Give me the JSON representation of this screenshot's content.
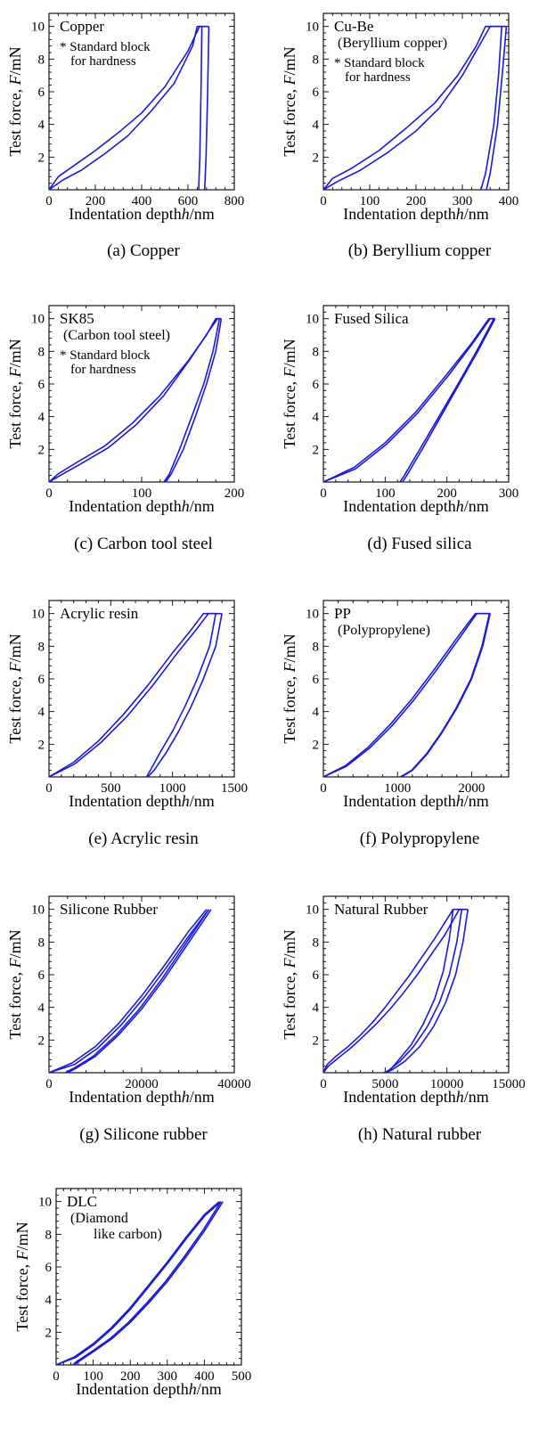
{
  "chart_data": [
    {
      "type": "line",
      "caption": "(a) Copper",
      "material_label": "Copper",
      "note": [
        "* Standard block",
        "for hardness"
      ],
      "xlabel": "Indentation depth h/nm",
      "ylabel": "Test force, F/mN",
      "xlim": [
        0,
        800
      ],
      "ylim": [
        0,
        10.8
      ],
      "xticks": [
        0,
        200,
        400,
        600,
        800
      ],
      "yticks": [
        2,
        4,
        6,
        8,
        10
      ],
      "series": [
        {
          "x": [
            0,
            40,
            100,
            200,
            300,
            400,
            500,
            600,
            650,
            690
          ],
          "y": [
            0,
            0.8,
            1.4,
            2.4,
            3.5,
            4.7,
            6.3,
            8.5,
            10,
            10
          ]
        },
        {
          "x": [
            0,
            60,
            140,
            240,
            340,
            440,
            540,
            620,
            640,
            660
          ],
          "y": [
            0,
            0.6,
            1.2,
            2.2,
            3.3,
            4.8,
            6.5,
            8.8,
            10,
            10
          ]
        },
        {
          "x": [
            690,
            685,
            678,
            672
          ],
          "y": [
            10,
            6,
            2,
            0
          ]
        },
        {
          "x": [
            660,
            656,
            651,
            646
          ],
          "y": [
            10,
            6,
            2,
            0
          ]
        }
      ]
    },
    {
      "type": "line",
      "caption": "(b) Beryllium copper",
      "material_label": "Cu-Be",
      "material_sub": "(Beryllium copper)",
      "note": [
        "* Standard block",
        "for hardness"
      ],
      "xlabel": "Indentation depth h/nm",
      "ylabel": "Test force, F/mN",
      "xlim": [
        0,
        400
      ],
      "ylim": [
        0,
        10.8
      ],
      "xticks": [
        0,
        100,
        200,
        300,
        400
      ],
      "yticks": [
        2,
        4,
        6,
        8,
        10
      ],
      "series": [
        {
          "x": [
            0,
            20,
            60,
            120,
            180,
            240,
            290,
            330,
            350,
            385
          ],
          "y": [
            0,
            0.7,
            1.3,
            2.4,
            3.8,
            5.3,
            7.0,
            8.8,
            10,
            10
          ]
        },
        {
          "x": [
            0,
            30,
            80,
            140,
            200,
            250,
            300,
            340,
            360,
            395
          ],
          "y": [
            0,
            0.5,
            1.2,
            2.3,
            3.6,
            5.0,
            7.0,
            9.0,
            10,
            10
          ]
        },
        {
          "x": [
            385,
            378,
            368,
            350,
            340
          ],
          "y": [
            10,
            7,
            4,
            1,
            0
          ]
        },
        {
          "x": [
            395,
            386,
            376,
            360,
            352
          ],
          "y": [
            10,
            7,
            4,
            1,
            0
          ]
        }
      ]
    },
    {
      "type": "line",
      "caption": "(c) Carbon tool steel",
      "material_label": "SK85",
      "material_sub": "(Carbon tool steel)",
      "note": [
        "* Standard block",
        "for hardness"
      ],
      "xlabel": "Indentation depth h/nm",
      "ylabel": "Test force, F/mN",
      "xlim": [
        0,
        200
      ],
      "ylim": [
        0,
        10.8
      ],
      "xticks": [
        0,
        100,
        200
      ],
      "yticks": [
        2,
        4,
        6,
        8,
        10
      ],
      "series": [
        {
          "x": [
            0,
            10,
            30,
            60,
            90,
            120,
            150,
            170,
            180,
            184
          ],
          "y": [
            0,
            0.5,
            1.2,
            2.2,
            3.6,
            5.3,
            7.4,
            9.0,
            10,
            10
          ]
        },
        {
          "x": [
            0,
            12,
            34,
            64,
            94,
            124,
            152,
            172,
            182,
            186
          ],
          "y": [
            0,
            0.4,
            1.1,
            2.1,
            3.5,
            5.3,
            7.5,
            9.2,
            10,
            10
          ]
        },
        {
          "x": [
            186,
            180,
            170,
            158,
            145,
            132,
            126
          ],
          "y": [
            10,
            8,
            6,
            4,
            2,
            0.5,
            0
          ]
        },
        {
          "x": [
            184,
            177,
            167,
            154,
            141,
            130,
            124
          ],
          "y": [
            10,
            8,
            6,
            4,
            2,
            0.5,
            0
          ]
        }
      ]
    },
    {
      "type": "line",
      "caption": "(d) Fused silica",
      "material_label": "Fused Silica",
      "xlabel": "Indentation depth h/nm",
      "ylabel": "Test force, F/mN",
      "xlim": [
        0,
        300
      ],
      "ylim": [
        0,
        10.8
      ],
      "xticks": [
        0,
        100,
        200,
        300
      ],
      "yticks": [
        2,
        4,
        6,
        8,
        10
      ],
      "series": [
        {
          "x": [
            0,
            50,
            100,
            150,
            200,
            240,
            268,
            276
          ],
          "y": [
            0,
            0.9,
            2.4,
            4.3,
            6.6,
            8.5,
            10,
            10
          ]
        },
        {
          "x": [
            0,
            52,
            102,
            152,
            202,
            242,
            270,
            278
          ],
          "y": [
            0,
            0.8,
            2.3,
            4.2,
            6.5,
            8.5,
            10,
            10
          ]
        },
        {
          "x": [
            278,
            250,
            220,
            190,
            160,
            135,
            128
          ],
          "y": [
            10,
            8,
            6,
            4,
            2,
            0.4,
            0
          ]
        },
        {
          "x": [
            276,
            248,
            218,
            187,
            156,
            131,
            124
          ],
          "y": [
            10,
            8,
            6,
            4,
            2,
            0.4,
            0
          ]
        }
      ]
    },
    {
      "type": "line",
      "caption": "(e) Acrylic resin",
      "material_label": "Acrylic resin",
      "xlabel": "Indentation depth h/nm",
      "ylabel": "Test force, F/mN",
      "xlim": [
        0,
        1500
      ],
      "ylim": [
        0,
        10.8
      ],
      "xticks": [
        0,
        500,
        1000,
        1500
      ],
      "yticks": [
        2,
        4,
        6,
        8,
        10
      ],
      "series": [
        {
          "x": [
            0,
            200,
            400,
            600,
            800,
            1000,
            1150,
            1250,
            1350
          ],
          "y": [
            0,
            0.9,
            2.2,
            3.8,
            5.6,
            7.6,
            9.0,
            10,
            10
          ]
        },
        {
          "x": [
            0,
            210,
            420,
            630,
            840,
            1040,
            1190,
            1290,
            1400
          ],
          "y": [
            0,
            0.8,
            2.1,
            3.7,
            5.6,
            7.6,
            9.0,
            10,
            10
          ]
        },
        {
          "x": [
            1400,
            1350,
            1250,
            1150,
            1050,
            950,
            850,
            800
          ],
          "y": [
            10,
            8,
            6,
            4.3,
            2.8,
            1.5,
            0.4,
            0
          ]
        },
        {
          "x": [
            1350,
            1300,
            1200,
            1100,
            1000,
            900,
            820,
            790
          ],
          "y": [
            10,
            8,
            6,
            4.3,
            2.8,
            1.5,
            0.4,
            0
          ]
        }
      ]
    },
    {
      "type": "line",
      "caption": "(f) Polypropylene",
      "material_label": "PP",
      "material_sub": "(Polypropylene)",
      "xlabel": "Indentation depth h/nm",
      "ylabel": "Test force, F/mN",
      "xlim": [
        0,
        2500
      ],
      "ylim": [
        0,
        10.8
      ],
      "xticks": [
        0,
        1000,
        2000
      ],
      "yticks": [
        2,
        4,
        6,
        8,
        10
      ],
      "series": [
        {
          "x": [
            0,
            300,
            600,
            900,
            1200,
            1500,
            1800,
            2050,
            2250
          ],
          "y": [
            0,
            0.7,
            1.8,
            3.2,
            4.8,
            6.6,
            8.5,
            10,
            10
          ]
        },
        {
          "x": [
            0,
            310,
            620,
            920,
            1220,
            1520,
            1820,
            2070,
            2250
          ],
          "y": [
            0,
            0.65,
            1.75,
            3.1,
            4.7,
            6.5,
            8.4,
            10,
            10
          ]
        },
        {
          "x": [
            2250,
            2150,
            2000,
            1800,
            1600,
            1400,
            1200,
            1050
          ],
          "y": [
            10,
            8,
            6,
            4.2,
            2.7,
            1.4,
            0.4,
            0
          ]
        },
        {
          "x": [
            2240,
            2140,
            1990,
            1790,
            1590,
            1390,
            1190,
            1040
          ],
          "y": [
            10,
            8,
            6,
            4.2,
            2.7,
            1.4,
            0.4,
            0
          ]
        }
      ]
    },
    {
      "type": "line",
      "caption": "(g) Silicone rubber",
      "material_label": "Silicone Rubber",
      "xlabel": "Indentation depth h/nm",
      "ylabel": "Test force, F/mN",
      "xlim": [
        0,
        40000
      ],
      "ylim": [
        0,
        10.8
      ],
      "xticks": [
        0,
        20000,
        40000
      ],
      "yticks": [
        2,
        4,
        6,
        8,
        10
      ],
      "series": [
        {
          "x": [
            0,
            5000,
            10000,
            15000,
            20000,
            25000,
            30000,
            34000
          ],
          "y": [
            0,
            0.6,
            1.6,
            3.0,
            4.7,
            6.6,
            8.6,
            10
          ]
        },
        {
          "x": [
            0,
            5500,
            10500,
            15500,
            20500,
            25500,
            30500,
            34500
          ],
          "y": [
            0,
            0.5,
            1.5,
            2.9,
            4.6,
            6.5,
            8.5,
            10
          ]
        },
        {
          "x": [
            35000,
            30000,
            25000,
            20000,
            15000,
            10000,
            6000,
            4000
          ],
          "y": [
            10,
            7.9,
            5.8,
            3.9,
            2.3,
            1.0,
            0.3,
            0
          ]
        },
        {
          "x": [
            34500,
            29500,
            24500,
            19500,
            14500,
            9500,
            5500,
            3500
          ],
          "y": [
            10,
            7.9,
            5.8,
            3.9,
            2.3,
            1.0,
            0.3,
            0
          ]
        }
      ]
    },
    {
      "type": "line",
      "caption": "(h) Natural rubber",
      "material_label": "Natural Rubber",
      "xlabel": "Indentation depth h/nm",
      "ylabel": "Test force, F/mN",
      "xlim": [
        0,
        15000
      ],
      "ylim": [
        0,
        10.8
      ],
      "xticks": [
        0,
        5000,
        10000,
        15000
      ],
      "yticks": [
        2,
        4,
        6,
        8,
        10
      ],
      "series": [
        {
          "x": [
            0,
            300,
            1000,
            2000,
            3000,
            4000,
            5000,
            6000,
            7000,
            8000,
            9000,
            10000,
            10500,
            11200
          ],
          "y": [
            0,
            0.5,
            1.0,
            1.6,
            2.3,
            3.1,
            4.0,
            5.0,
            6.0,
            7.1,
            8.2,
            9.4,
            10,
            10
          ]
        },
        {
          "x": [
            0,
            400,
            1200,
            2200,
            3200,
            4300,
            5400,
            6500,
            7600,
            8700,
            9800,
            10700,
            11000,
            11700
          ],
          "y": [
            0,
            0.4,
            0.9,
            1.5,
            2.2,
            3.0,
            3.9,
            4.9,
            6.0,
            7.2,
            8.4,
            9.6,
            10,
            10
          ]
        },
        {
          "x": [
            11700,
            11300,
            10700,
            9900,
            8900,
            7800,
            6600,
            5500,
            5000
          ],
          "y": [
            10,
            8.0,
            6.0,
            4.3,
            2.8,
            1.6,
            0.7,
            0.15,
            0
          ]
        },
        {
          "x": [
            11200,
            10800,
            10200,
            9400,
            8400,
            7300,
            6200,
            5300,
            4900
          ],
          "y": [
            10,
            8.0,
            6.0,
            4.3,
            2.8,
            1.6,
            0.7,
            0.15,
            0
          ]
        },
        {
          "x": [
            10500,
            10200,
            9700,
            9000,
            8100,
            7100,
            6000,
            5200
          ],
          "y": [
            10,
            8.2,
            6.2,
            4.5,
            3.0,
            1.7,
            0.7,
            0
          ]
        }
      ]
    },
    {
      "type": "line",
      "material_label": "DLC",
      "material_sub": [
        "(Diamond",
        "like carbon)"
      ],
      "xlabel": "Indentation depth h/nm",
      "ylabel": "Test force, F/mN",
      "xlim": [
        0,
        500
      ],
      "ylim": [
        0,
        10.8
      ],
      "xticks": [
        0,
        100,
        200,
        300,
        400,
        500
      ],
      "yticks": [
        2,
        4,
        6,
        8,
        10
      ],
      "series": [
        {
          "x": [
            0,
            50,
            100,
            150,
            200,
            250,
            300,
            350,
            400,
            440
          ],
          "y": [
            0,
            0.5,
            1.3,
            2.3,
            3.5,
            4.9,
            6.3,
            7.8,
            9.2,
            10
          ]
        },
        {
          "x": [
            0,
            52,
            102,
            152,
            202,
            252,
            302,
            352,
            402,
            445
          ],
          "y": [
            0,
            0.45,
            1.25,
            2.25,
            3.45,
            4.85,
            6.25,
            7.75,
            9.15,
            10
          ]
        },
        {
          "x": [
            450,
            400,
            350,
            300,
            250,
            200,
            150,
            100,
            60,
            50
          ],
          "y": [
            10,
            8.2,
            6.6,
            5.1,
            3.8,
            2.6,
            1.6,
            0.8,
            0.2,
            0
          ]
        },
        {
          "x": [
            445,
            395,
            345,
            295,
            245,
            195,
            145,
            95,
            55,
            45
          ],
          "y": [
            10,
            8.2,
            6.6,
            5.1,
            3.8,
            2.6,
            1.6,
            0.8,
            0.2,
            0
          ]
        }
      ]
    }
  ],
  "colors": {
    "curve": "#1a1ad6",
    "axis": "#000000"
  }
}
